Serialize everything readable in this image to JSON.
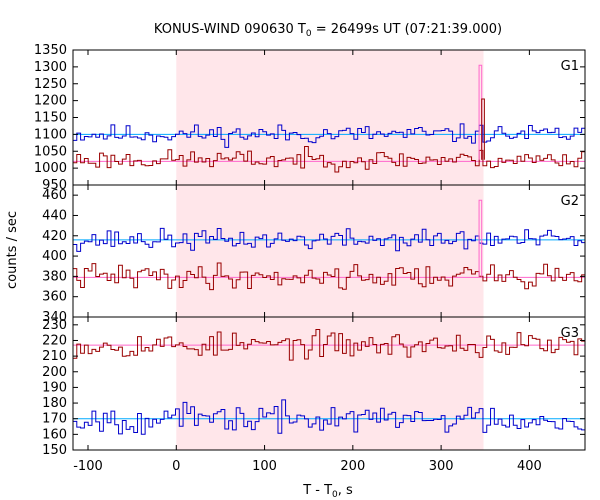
{
  "chart_data": {
    "type": "line",
    "title": "KONUS-WIND 090630 T0 = 26499s UT (07:21:39.000)",
    "title_parts": {
      "pre": "KONUS-WIND 090630 T",
      "sub": "0",
      "post": " = 26499s UT (07:21:39.000)"
    },
    "xlabel_parts": {
      "pre": "T - T",
      "sub": "0",
      "post": ", s"
    },
    "ylabel": "counts / sec",
    "xlim": [
      -117,
      463
    ],
    "x_ticks": [
      -100,
      0,
      100,
      200,
      300,
      400
    ],
    "highlight_interval": [
      0,
      348
    ],
    "colors": {
      "highlight": "#ffe6ea",
      "high_series": "#0000cc",
      "low_series": "#990000",
      "high_bg": "#00aaff",
      "low_bg": "#ff66cc",
      "spike": "#ff66cc"
    },
    "panels": [
      {
        "band": "G1",
        "ylim": [
          950,
          1350
        ],
        "y_ticks": [
          950,
          1000,
          1050,
          1100,
          1150,
          1200,
          1250,
          1300,
          1350
        ],
        "series": [
          {
            "color": "#0000cc",
            "mean": 1100,
            "background": 1100,
            "amplitude": 14,
            "seed": 11
          },
          {
            "color": "#990000",
            "mean": 1025,
            "background": 1020,
            "amplitude": 14,
            "seed": 23
          }
        ],
        "spikes": [
          {
            "x": 343,
            "width": 3,
            "value": 1305,
            "color": "#ff66cc"
          },
          {
            "x": 346,
            "width": 3,
            "value": 1205,
            "color": "#990000"
          }
        ]
      },
      {
        "band": "G2",
        "ylim": [
          340,
          470
        ],
        "y_ticks": [
          340,
          360,
          380,
          400,
          420,
          440,
          460
        ],
        "series": [
          {
            "color": "#0000cc",
            "mean": 416,
            "background": 416,
            "amplitude": 5,
            "seed": 37
          },
          {
            "color": "#990000",
            "mean": 380,
            "background": 379,
            "amplitude": 6,
            "seed": 41
          }
        ],
        "spikes": [
          {
            "x": 343,
            "width": 3,
            "value": 455,
            "color": "#ff66cc"
          }
        ]
      },
      {
        "band": "G3",
        "ylim": [
          150,
          235
        ],
        "y_ticks": [
          150,
          160,
          170,
          180,
          190,
          200,
          210,
          220,
          230
        ],
        "series": [
          {
            "color": "#990000",
            "mean": 217,
            "background": 217,
            "amplitude": 4,
            "seed": 53
          },
          {
            "color": "#0000cc",
            "mean": 170,
            "background": 170,
            "amplitude": 4.5,
            "seed": 67
          }
        ],
        "spikes": []
      }
    ]
  }
}
